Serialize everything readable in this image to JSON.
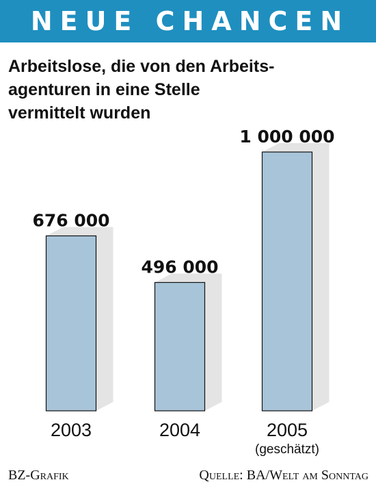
{
  "banner": {
    "title": "NEUE CHANCEN"
  },
  "colors": {
    "banner": "#1f8fc0",
    "bar": "#a8c4d9",
    "bar_shadow": "#e4e4e4",
    "text": "#111111"
  },
  "footer": {
    "credit": "BZ-Grafik",
    "source": "Quelle: BA/Welt am Sonntag"
  },
  "chart_data": {
    "type": "bar",
    "title": "Arbeitslose, die von den Arbeits-agenturen in eine Stelle vermittelt wurden",
    "categories": [
      "2003",
      "2004",
      "2005"
    ],
    "category_notes": [
      "",
      "",
      "(geschätzt)"
    ],
    "values": [
      676000,
      496000,
      1000000
    ],
    "value_labels": [
      "676 000",
      "496 000",
      "1 000 000"
    ],
    "ylim": [
      0,
      1000000
    ],
    "grid": false,
    "legend": "none",
    "xlabel": "",
    "ylabel": ""
  }
}
